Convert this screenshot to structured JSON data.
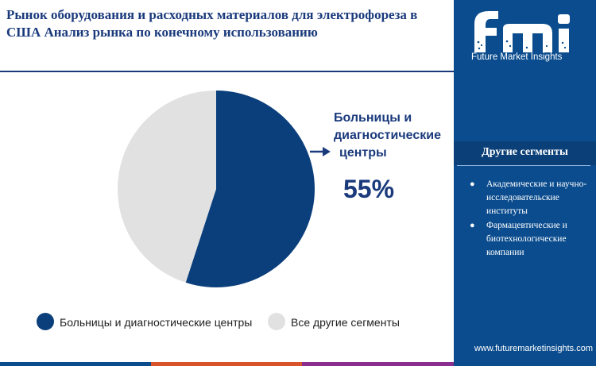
{
  "title": "Рынок оборудования и расходных материалов для электрофореза в США  Анализ рынка по конечному использованию",
  "brand": {
    "name": "Future Market Insights",
    "logo_text": "fmi",
    "url": "www.futuremarketinsights.com"
  },
  "sidebar": {
    "title": "Другие сегменты",
    "items": [
      "Академические и научно-исследовательские институты",
      "Фармацевтические и биотехнологические компании"
    ]
  },
  "colors": {
    "primary": "#0a4c8e",
    "dark_blue": "#0b3f78",
    "slice_main": "#0b3f7c",
    "slice_other": "#e1e1e1",
    "title": "#1a3a7c"
  },
  "chart_data": {
    "type": "pie",
    "series": [
      {
        "name": "Больницы и диагностические центры",
        "value": 55
      },
      {
        "name": "Все другие сегменты",
        "value": 45
      }
    ],
    "callout": {
      "label_lines": [
        "Больницы и",
        "диагностические",
        "центры"
      ],
      "value_label": "55%"
    },
    "legend": {
      "placement": "bottom",
      "items": [
        "Больницы и диагностические центры",
        "Все другие сегменты"
      ]
    }
  }
}
